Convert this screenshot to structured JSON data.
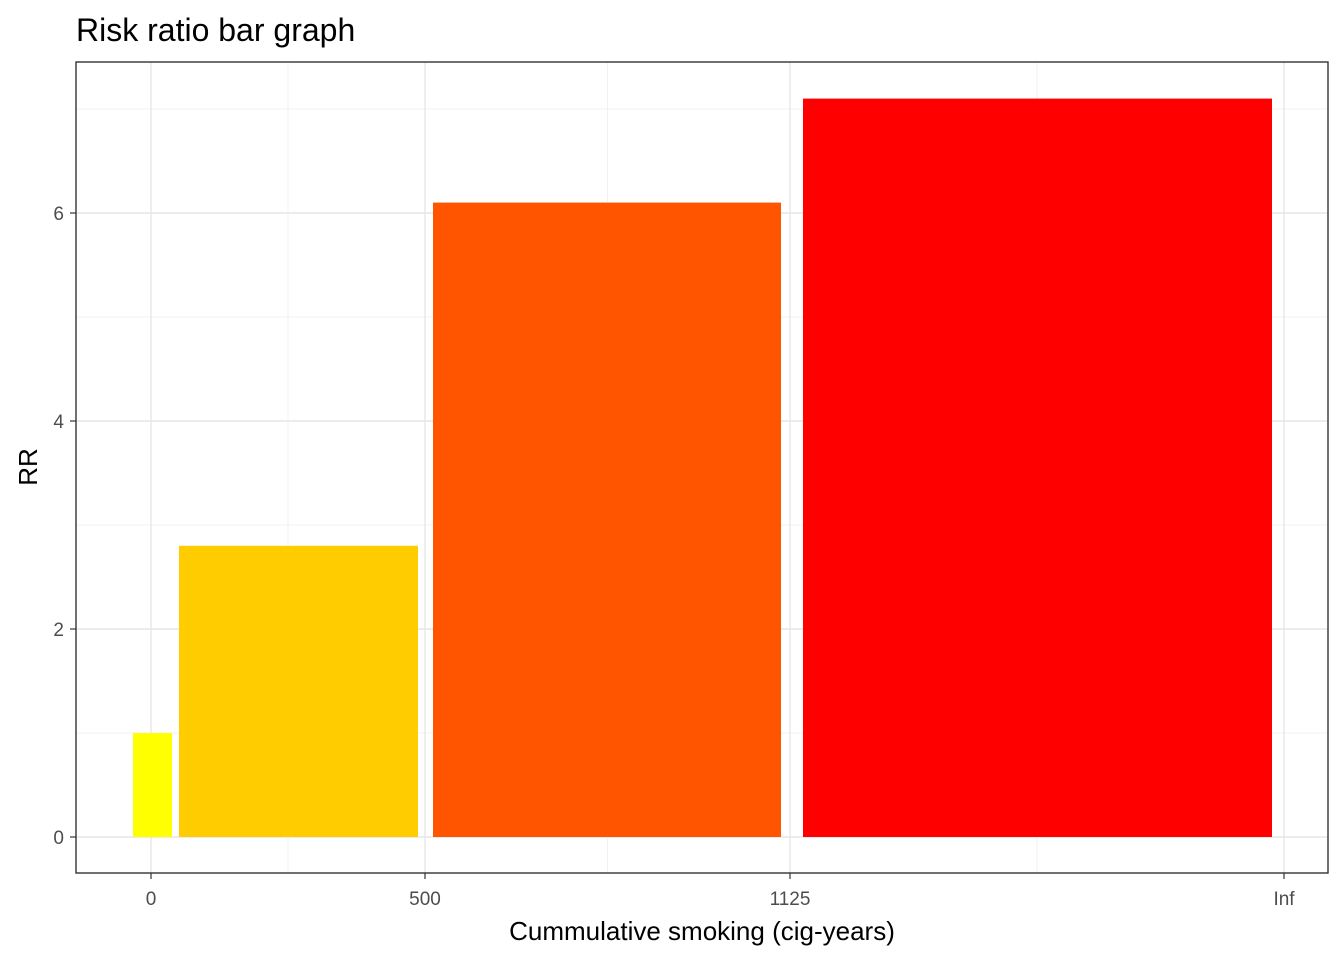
{
  "chart_data": {
    "type": "bar",
    "title": "Risk ratio bar graph",
    "xlabel": "Cummulative smoking (cig-years)",
    "ylabel": "RR",
    "x_ticks": [
      "0",
      "500",
      "1125",
      "Inf"
    ],
    "y_ticks": [
      "0",
      "2",
      "4",
      "6"
    ],
    "ylim": [
      0,
      7.1
    ],
    "grid": true,
    "legend": "none",
    "bars": [
      {
        "x_from": "<0",
        "x_to": "0",
        "value": 1.0,
        "color": "#FFFF00"
      },
      {
        "x_from": "0",
        "x_to": "500",
        "value": 2.8,
        "color": "#FFCC00"
      },
      {
        "x_from": "500",
        "x_to": "1125",
        "value": 6.1,
        "color": "#FF5500"
      },
      {
        "x_from": "1125",
        "x_to": "Inf",
        "value": 7.1,
        "color": "#FF0000"
      }
    ]
  }
}
